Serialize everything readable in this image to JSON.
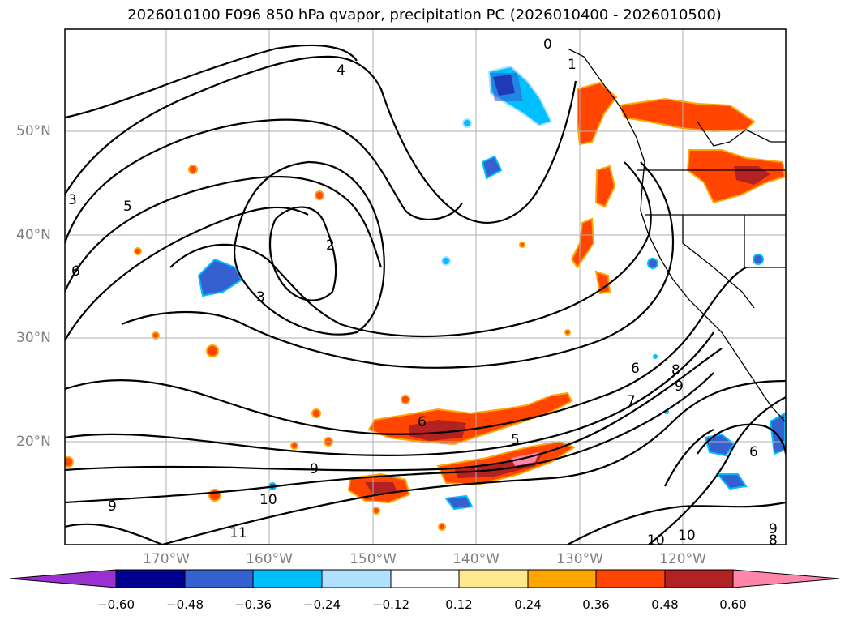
{
  "title": "2026010100 F096 850 hPa qvapor, precipitation PC (2026010400 - 2026010500)",
  "lat_labels": [
    "50°N",
    "40°N",
    "30°N",
    "20°N"
  ],
  "lon_labels": [
    "170°W",
    "160°W",
    "150°W",
    "140°W",
    "130°W",
    "120°W"
  ],
  "contour_labels": [
    "0",
    "1",
    "4",
    "3",
    "5",
    "6",
    "2",
    "3",
    "8",
    "9",
    "6",
    "7",
    "6",
    "5",
    "9",
    "10",
    "11",
    "9",
    "10",
    "10",
    "9",
    "8",
    "6"
  ],
  "colorbar": {
    "colors": [
      "#9b30d0",
      "#000090",
      "#3560d0",
      "#00bfff",
      "#b0e0ff",
      "#ffffff",
      "#ffe890",
      "#ffa500",
      "#ff4500",
      "#b22222",
      "#ff85aa"
    ],
    "tick_labels": [
      "−0.60",
      "−0.48",
      "−0.36",
      "−0.24",
      "−0.12",
      "0.12",
      "0.24",
      "0.36",
      "0.48",
      "0.60"
    ],
    "extend": "both"
  },
  "palette": {
    "frame": "#000000",
    "grid": "#b0b0b0",
    "axis_label": "#808080"
  }
}
